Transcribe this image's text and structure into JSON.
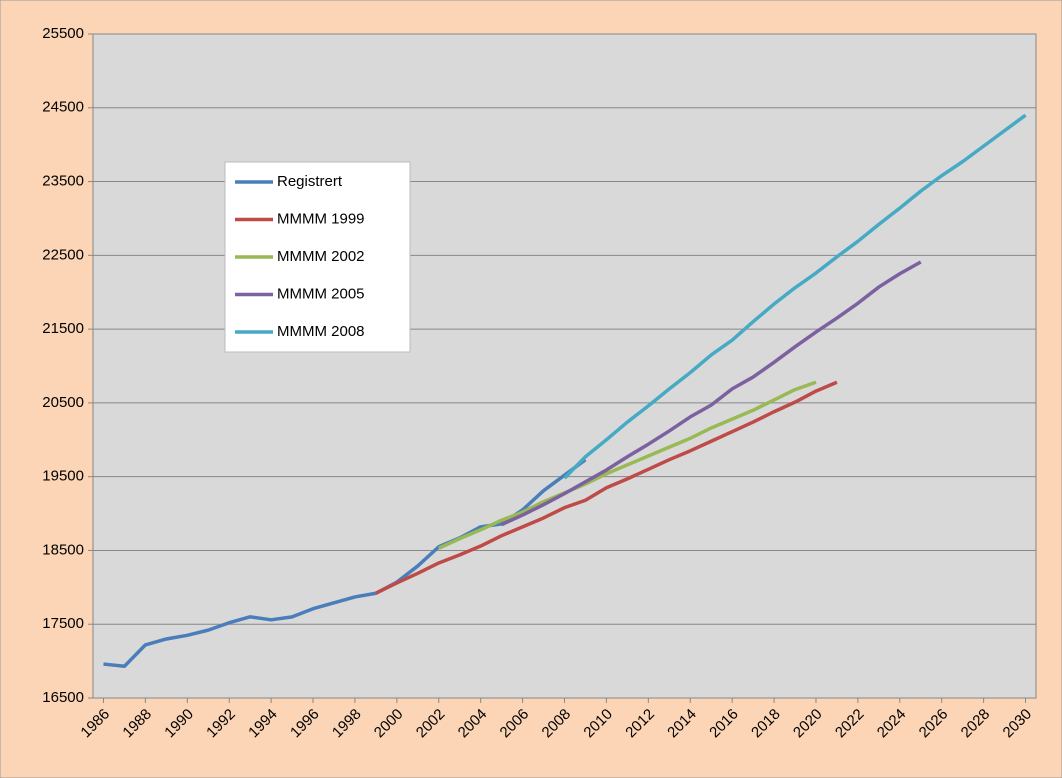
{
  "chart_data": {
    "type": "line",
    "x": [
      1986,
      1987,
      1988,
      1989,
      1990,
      1991,
      1992,
      1993,
      1994,
      1995,
      1996,
      1997,
      1998,
      1999,
      2000,
      2001,
      2002,
      2003,
      2004,
      2005,
      2006,
      2007,
      2008,
      2009,
      2010,
      2011,
      2012,
      2013,
      2014,
      2015,
      2016,
      2017,
      2018,
      2019,
      2020,
      2021,
      2022,
      2023,
      2024,
      2025,
      2026,
      2027,
      2028,
      2029,
      2030
    ],
    "series": [
      {
        "name": "Registrert",
        "color": "#4a7ebb",
        "values": [
          16960,
          16930,
          17220,
          17300,
          17350,
          17420,
          17520,
          17600,
          17560,
          17600,
          17710,
          17790,
          17870,
          17920,
          18070,
          18290,
          18550,
          18670,
          18820,
          18860,
          19050,
          19310,
          19520,
          19730,
          null,
          null,
          null,
          null,
          null,
          null,
          null,
          null,
          null,
          null,
          null,
          null,
          null,
          null,
          null,
          null,
          null,
          null,
          null,
          null,
          null
        ]
      },
      {
        "name": "MMMM 1999",
        "color": "#be4b48",
        "values": [
          null,
          null,
          null,
          null,
          null,
          null,
          null,
          null,
          null,
          null,
          null,
          null,
          null,
          17920,
          18060,
          18190,
          18330,
          18440,
          18560,
          18700,
          18820,
          18940,
          19080,
          19180,
          19350,
          19470,
          19600,
          19730,
          19850,
          19980,
          20110,
          20240,
          20380,
          20510,
          20660,
          20780,
          null,
          null,
          null,
          null,
          null,
          null,
          null,
          null,
          null
        ]
      },
      {
        "name": "MMMM 2002",
        "color": "#98b954",
        "values": [
          null,
          null,
          null,
          null,
          null,
          null,
          null,
          null,
          null,
          null,
          null,
          null,
          null,
          null,
          null,
          null,
          18530,
          18660,
          18780,
          18910,
          19020,
          19160,
          19280,
          19400,
          19540,
          19660,
          19780,
          19900,
          20020,
          20160,
          20280,
          20400,
          20540,
          20680,
          20780,
          null,
          null,
          null,
          null,
          null,
          null,
          null,
          null,
          null,
          null
        ]
      },
      {
        "name": "MMMM 2005",
        "color": "#7d60a0",
        "values": [
          null,
          null,
          null,
          null,
          null,
          null,
          null,
          null,
          null,
          null,
          null,
          null,
          null,
          null,
          null,
          null,
          null,
          null,
          null,
          18850,
          18980,
          19120,
          19270,
          19430,
          19590,
          19770,
          19940,
          20120,
          20310,
          20470,
          20690,
          20850,
          21050,
          21260,
          21460,
          21650,
          21850,
          22070,
          22250,
          22410,
          null,
          null,
          null,
          null,
          null
        ]
      },
      {
        "name": "MMMM 2008",
        "color": "#46aac5",
        "values": [
          null,
          null,
          null,
          null,
          null,
          null,
          null,
          null,
          null,
          null,
          null,
          null,
          null,
          null,
          null,
          null,
          null,
          null,
          null,
          null,
          null,
          null,
          19480,
          19770,
          20000,
          20240,
          20460,
          20690,
          20910,
          21150,
          21350,
          21600,
          21840,
          22060,
          22260,
          22480,
          22690,
          22920,
          23140,
          23370,
          23580,
          23770,
          23980,
          24190,
          24400
        ]
      }
    ],
    "xlim": [
      1985.5,
      2030.5
    ],
    "xticks": [
      1986,
      1988,
      1990,
      1992,
      1994,
      1996,
      1998,
      2000,
      2002,
      2004,
      2006,
      2008,
      2010,
      2012,
      2014,
      2016,
      2018,
      2020,
      2022,
      2024,
      2026,
      2028,
      2030
    ],
    "ylim": [
      16500,
      25500
    ],
    "yticks": [
      16500,
      17500,
      18500,
      19500,
      20500,
      21500,
      22500,
      23500,
      24500,
      25500
    ],
    "grid": true,
    "legend": "upper left"
  }
}
